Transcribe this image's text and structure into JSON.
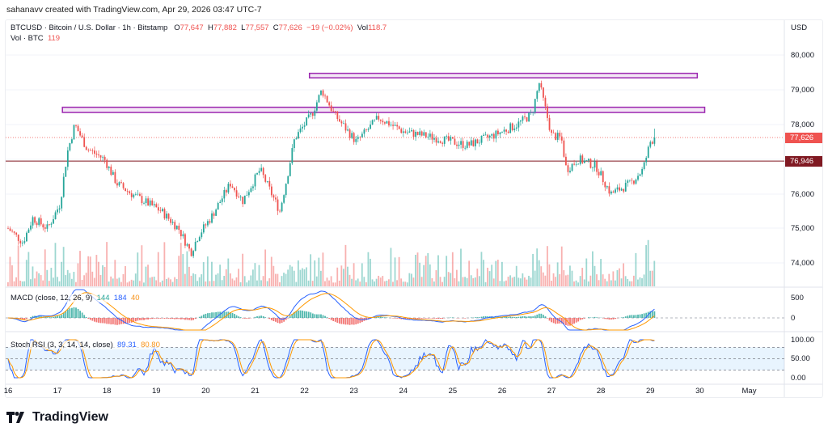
{
  "credit": "sahanavv created with TradingView.com, Apr 29, 2026 03:47 UTC-7",
  "legend": {
    "symbol": "BTCUSD · Bitcoin / U.S. Dollar · 1h · Bitstamp",
    "o_label": "O",
    "o": "77,647",
    "h_label": "H",
    "h": "77,882",
    "l_label": "L",
    "l": "77,557",
    "c_label": "C",
    "c": "77,626",
    "change": "−19 (−0.02%)",
    "vol_label": "Vol",
    "vol": "118.7",
    "vol_series": "Vol · BTC",
    "vol_series_value": "119"
  },
  "macd": {
    "label": "MACD (close, 12, 26, 9)",
    "hist": "144",
    "macd": "184",
    "signal": "40"
  },
  "stoch": {
    "label": "Stoch RSI (3, 3, 14, 14, close)",
    "k": "89.31",
    "d": "80.80"
  },
  "axis": {
    "currency": "USD",
    "price_ticks": [
      "80,000",
      "79,000",
      "78,000",
      "76,000",
      "75,000",
      "74,000"
    ],
    "macd_ticks": [
      "500",
      "0"
    ],
    "stoch_ticks": [
      "100.00",
      "50.00",
      "0.00"
    ],
    "last_price": "77,626",
    "line_price": "76,946"
  },
  "logo": "TradingView",
  "colors": {
    "up": "#26a69a",
    "down": "#ef5350",
    "zone": "#9c27b0",
    "level_line": "#801922",
    "macd": "#2962ff",
    "signal": "#ff9800",
    "stoch_k": "#2962ff",
    "stoch_d": "#ff9800"
  },
  "chart_data": {
    "type": "candlestick",
    "x_tick_labels": [
      "16",
      "17",
      "18",
      "19",
      "20",
      "21",
      "22",
      "23",
      "24",
      "25",
      "26",
      "27",
      "28",
      "29",
      "30",
      "May"
    ],
    "ylim": [
      73600,
      80300
    ],
    "approx_close_path": [
      [
        16.0,
        75000
      ],
      [
        16.3,
        74600
      ],
      [
        16.5,
        75300
      ],
      [
        16.8,
        75000
      ],
      [
        17.05,
        75700
      ],
      [
        17.2,
        77200
      ],
      [
        17.35,
        78000
      ],
      [
        17.6,
        77300
      ],
      [
        17.95,
        77000
      ],
      [
        18.2,
        76300
      ],
      [
        18.5,
        76000
      ],
      [
        19.1,
        75500
      ],
      [
        19.45,
        75000
      ],
      [
        19.7,
        74300
      ],
      [
        19.85,
        74800
      ],
      [
        20.1,
        75300
      ],
      [
        20.5,
        76300
      ],
      [
        20.75,
        75800
      ],
      [
        21.1,
        76700
      ],
      [
        21.5,
        75500
      ],
      [
        21.65,
        76500
      ],
      [
        21.8,
        77600
      ],
      [
        22.15,
        78300
      ],
      [
        22.35,
        79000
      ],
      [
        22.6,
        78300
      ],
      [
        23.05,
        77500
      ],
      [
        23.5,
        78200
      ],
      [
        24.0,
        77800
      ],
      [
        24.7,
        77600
      ],
      [
        25.3,
        77400
      ],
      [
        25.85,
        77700
      ],
      [
        26.3,
        78000
      ],
      [
        26.6,
        78300
      ],
      [
        26.75,
        79200
      ],
      [
        26.9,
        78300
      ],
      [
        27.0,
        77700
      ],
      [
        27.2,
        77600
      ],
      [
        27.3,
        76700
      ],
      [
        27.55,
        77000
      ],
      [
        27.9,
        76800
      ],
      [
        28.2,
        76000
      ],
      [
        28.6,
        76300
      ],
      [
        28.85,
        76700
      ],
      [
        29.0,
        77500
      ],
      [
        29.1,
        77626
      ]
    ],
    "zones": [
      {
        "from": 79350,
        "to": 79480,
        "start_day": 22.1,
        "end_day": 29.95
      },
      {
        "from": 78350,
        "to": 78500,
        "start_day": 17.1,
        "end_day": 30.1
      }
    ],
    "horizontal_line": 76946,
    "last_close": 77626
  }
}
